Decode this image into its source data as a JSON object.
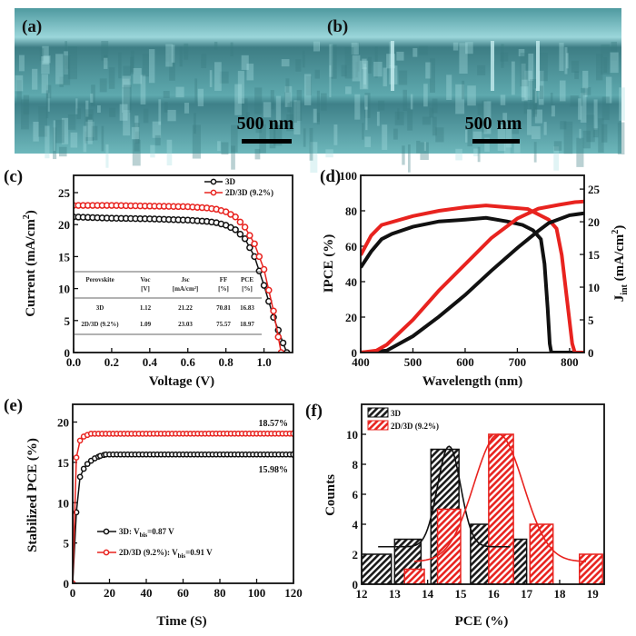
{
  "sem": {
    "panel_a_label": "(a)",
    "panel_b_label": "(b)",
    "scale_bar_a": "500 nm",
    "scale_bar_b": "500 nm",
    "tint": "#5fb3ba"
  },
  "colors": {
    "3D": "#111111",
    "2D/3D": "#e8231f"
  },
  "chart_data": [
    {
      "panel": "(c)",
      "type": "line",
      "xlabel": "Voltage (V)",
      "ylabel": "Current (mA/cm",
      "ylabel_sup": "2",
      "ylabel_end": ")",
      "xlim": [
        0,
        1.15
      ],
      "ylim": [
        0,
        27.7
      ],
      "xticks": [
        "0.0",
        "0.2",
        "0.4",
        "0.6",
        "0.8",
        "1.0"
      ],
      "yticks": [
        "0",
        "5",
        "10",
        "15",
        "20",
        "25"
      ],
      "legend": "top-right",
      "series": [
        {
          "name": "3D",
          "points": [
            [
              0,
              21.2
            ],
            [
              0.1,
              21.1
            ],
            [
              0.2,
              21.0
            ],
            [
              0.3,
              20.95
            ],
            [
              0.4,
              20.9
            ],
            [
              0.5,
              20.8
            ],
            [
              0.6,
              20.7
            ],
            [
              0.7,
              20.5
            ],
            [
              0.75,
              20.3
            ],
            [
              0.8,
              19.9
            ],
            [
              0.85,
              19.2
            ],
            [
              0.9,
              17.8
            ],
            [
              0.95,
              15.0
            ],
            [
              1.0,
              10.5
            ],
            [
              1.05,
              5.5
            ],
            [
              1.1,
              1.5
            ],
            [
              1.12,
              0
            ]
          ]
        },
        {
          "name": "2D/3D (9.2%)",
          "points": [
            [
              0,
              23.0
            ],
            [
              0.1,
              23.0
            ],
            [
              0.2,
              23.0
            ],
            [
              0.3,
              22.95
            ],
            [
              0.4,
              22.9
            ],
            [
              0.5,
              22.85
            ],
            [
              0.6,
              22.8
            ],
            [
              0.7,
              22.6
            ],
            [
              0.75,
              22.4
            ],
            [
              0.8,
              22.0
            ],
            [
              0.85,
              21.2
            ],
            [
              0.9,
              19.6
            ],
            [
              0.95,
              17.0
            ],
            [
              1.0,
              13.0
            ],
            [
              1.05,
              6.5
            ],
            [
              1.09,
              0
            ]
          ]
        }
      ],
      "table": {
        "headers": [
          [
            "Perovskite",
            ""
          ],
          [
            "Voc",
            "[V]"
          ],
          [
            "Jsc",
            "[mA/cm²]"
          ],
          [
            "FF",
            "[%]"
          ],
          [
            "PCE",
            "[%]"
          ]
        ],
        "rows": [
          [
            "3D",
            "1.12",
            "21.22",
            "70.81",
            "16.83"
          ],
          [
            "2D/3D (9.2%)",
            "1.09",
            "23.03",
            "75.57",
            "18.97"
          ]
        ]
      }
    },
    {
      "panel": "(d)",
      "type": "line",
      "xlabel": "Wavelength (nm)",
      "ylabel": "IPCE (%)",
      "ylabel_right": "J",
      "ylabel_right_sub": "int",
      "ylabel_right_end": " (mA/cm",
      "ylabel_right_sup": "2",
      "ylabel_right_close": ")",
      "xlim": [
        400,
        828
      ],
      "ylim": [
        0,
        100
      ],
      "ylim_right": [
        0,
        27.1
      ],
      "xticks": [
        "400",
        "500",
        "600",
        "700",
        "800"
      ],
      "yticks": [
        "0",
        "20",
        "40",
        "60",
        "80",
        "100"
      ],
      "yticks_right": [
        "0",
        "5",
        "10",
        "15",
        "20",
        "25"
      ],
      "series": [
        {
          "group": "3D",
          "axis": "left",
          "points": [
            [
              400,
              48
            ],
            [
              420,
              57
            ],
            [
              440,
              64
            ],
            [
              460,
              67
            ],
            [
              500,
              71
            ],
            [
              550,
              74
            ],
            [
              600,
              75
            ],
            [
              640,
              76
            ],
            [
              680,
              74
            ],
            [
              710,
              72
            ],
            [
              730,
              69
            ],
            [
              745,
              64
            ],
            [
              752,
              50
            ],
            [
              758,
              25
            ],
            [
              762,
              5
            ],
            [
              765,
              0
            ],
            [
              828,
              0
            ]
          ]
        },
        {
          "group": "2D/3D",
          "axis": "left",
          "points": [
            [
              400,
              55
            ],
            [
              420,
              66
            ],
            [
              440,
              72
            ],
            [
              500,
              77
            ],
            [
              550,
              80
            ],
            [
              600,
              82
            ],
            [
              640,
              83
            ],
            [
              680,
              82
            ],
            [
              720,
              81
            ],
            [
              760,
              75
            ],
            [
              775,
              70
            ],
            [
              785,
              55
            ],
            [
              795,
              30
            ],
            [
              805,
              5
            ],
            [
              810,
              0
            ],
            [
              828,
              0
            ]
          ]
        },
        {
          "group": "3D",
          "axis": "right",
          "points": [
            [
              400,
              0
            ],
            [
              450,
              0.3
            ],
            [
              500,
              2.5
            ],
            [
              550,
              5.5
            ],
            [
              600,
              8.8
            ],
            [
              650,
              12.5
            ],
            [
              700,
              16
            ],
            [
              740,
              18.6
            ],
            [
              760,
              19.8
            ],
            [
              800,
              21
            ],
            [
              828,
              21.3
            ]
          ]
        },
        {
          "group": "2D/3D",
          "axis": "right",
          "points": [
            [
              400,
              0
            ],
            [
              430,
              0.3
            ],
            [
              450,
              1.2
            ],
            [
              500,
              5
            ],
            [
              550,
              9.5
            ],
            [
              600,
              13.5
            ],
            [
              650,
              17.5
            ],
            [
              700,
              20.5
            ],
            [
              740,
              22
            ],
            [
              780,
              22.6
            ],
            [
              810,
              23
            ],
            [
              828,
              23.1
            ]
          ]
        }
      ]
    },
    {
      "panel": "(e)",
      "type": "line",
      "xlabel": "Time (S)",
      "ylabel": "Stabilized PCE (%)",
      "xlim": [
        0,
        120
      ],
      "ylim": [
        0,
        22.2
      ],
      "xticks": [
        "0",
        "20",
        "40",
        "60",
        "80",
        "100",
        "120"
      ],
      "yticks": [
        "0",
        "5",
        "10",
        "15",
        "20"
      ],
      "legend": "bottom-left",
      "series": [
        {
          "name": "3D",
          "legend_prefix": "3D: V",
          "legend_sub": "bis",
          "legend_suffix": "=0.87 V",
          "points": [
            [
              0,
              0
            ],
            [
              2,
              8.8
            ],
            [
              4,
              13.2
            ],
            [
              6,
              14.2
            ],
            [
              8,
              14.8
            ],
            [
              10,
              15.2
            ],
            [
              12,
              15.5
            ],
            [
              15,
              15.8
            ],
            [
              18,
              15.98
            ],
            [
              120,
              15.98
            ]
          ]
        },
        {
          "name": "2D/3D (9.2%)",
          "legend_prefix": "2D/3D (9.2%): V",
          "legend_sub": "bis",
          "legend_suffix": "=0.91 V",
          "points": [
            [
              0,
              0
            ],
            [
              2,
              15.6
            ],
            [
              4,
              17.7
            ],
            [
              6,
              18.2
            ],
            [
              8,
              18.4
            ],
            [
              10,
              18.55
            ],
            [
              120,
              18.57
            ]
          ]
        }
      ],
      "annotations": [
        "18.57%",
        "15.98%"
      ]
    },
    {
      "panel": "(f)",
      "type": "bar",
      "xlabel": "PCE (%)",
      "ylabel": "Counts",
      "xlim": [
        12,
        19.35
      ],
      "ylim": [
        0,
        12
      ],
      "xticks": [
        "12",
        "13",
        "14",
        "15",
        "16",
        "17",
        "18",
        "19"
      ],
      "yticks": [
        "0",
        "2",
        "4",
        "6",
        "8",
        "10"
      ],
      "legend": "top-left",
      "series": [
        {
          "name": "3D",
          "bars": [
            [
              12.0,
              12.9,
              2
            ],
            [
              13.0,
              13.8,
              3
            ],
            [
              14.1,
              14.95,
              9
            ],
            [
              15.3,
              16.0,
              4
            ],
            [
              16.6,
              17.0,
              3
            ]
          ],
          "fit": {
            "center": 14.65,
            "peak": 9.2,
            "baseline": 2.5,
            "width": 0.35,
            "range": [
              12.5,
              16.5
            ]
          }
        },
        {
          "name": "2D/3D (9.2%)",
          "bars": [
            [
              13.3,
              13.9,
              1
            ],
            [
              14.3,
              15.0,
              5
            ],
            [
              15.85,
              16.6,
              10
            ],
            [
              17.1,
              17.8,
              4
            ],
            [
              18.6,
              19.3,
              2
            ]
          ],
          "fit": {
            "center": 16.15,
            "peak": 10.0,
            "baseline": 1.5,
            "width": 0.75,
            "range": [
              13.6,
              18.8
            ]
          }
        }
      ]
    }
  ]
}
